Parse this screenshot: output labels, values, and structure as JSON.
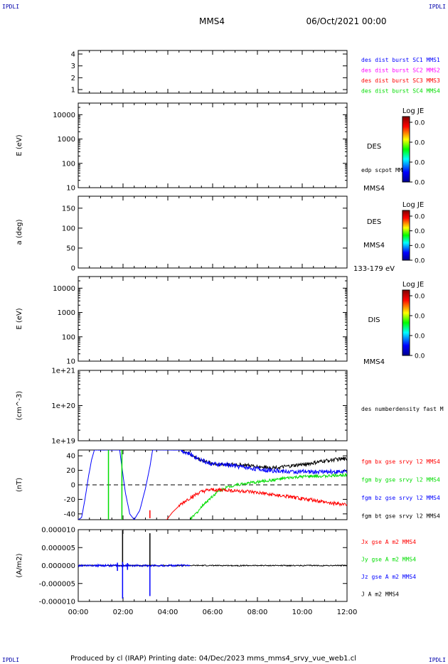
{
  "corner_labels": {
    "tl": "IPDLI",
    "tr": "IPDLI",
    "bl": "IPDLI",
    "br": "IPDLI"
  },
  "header": {
    "spacecraft": "MMS4",
    "datetime": "06/Oct/2021 00:00"
  },
  "footer": {
    "text": "Produced by cl (IRAP)   Printing date: 04/Dec/2023   mms_mms4_srvy_vue_web1.cl"
  },
  "colors": {
    "black": "#000000",
    "blue": "#0000ff",
    "magenta": "#ff00ff",
    "red": "#ff0000",
    "green": "#00dd00"
  },
  "x_axis": {
    "ticks": [
      "00:00",
      "02:00",
      "04:00",
      "06:00",
      "08:00",
      "10:00",
      "12:00"
    ],
    "range_hours": [
      0,
      12
    ]
  },
  "chart_data": [
    {
      "type": "line",
      "panel": "burst",
      "ylabel": "",
      "yticks": [
        "1",
        "2",
        "3",
        "4"
      ],
      "ylim": [
        0.7,
        4.3
      ],
      "legend": [
        {
          "text": "des dist burst SC1 MMS1",
          "color": "#0000ff"
        },
        {
          "text": "des dist burst SC2 MMS2",
          "color": "#ff00ff"
        },
        {
          "text": "des dist burst SC3 MMS3",
          "color": "#ff0000"
        },
        {
          "text": "des dist burst SC4 MMS4",
          "color": "#00dd00"
        }
      ],
      "series": []
    },
    {
      "type": "heatmap",
      "panel": "des-energy",
      "ylabel": "E (eV)",
      "yscale": "log",
      "yticks": [
        "10",
        "100",
        "1000",
        "10000"
      ],
      "ylim": [
        10,
        30000
      ],
      "side_labels": [
        "DES",
        "edp scpot MMS4",
        "MMS4"
      ],
      "colorbar": {
        "title": "Log JE",
        "ticks": [
          "0.0",
          "0.0",
          "0.0",
          "0.0"
        ]
      }
    },
    {
      "type": "heatmap",
      "panel": "des-pitch",
      "ylabel": "a (deg)",
      "yticks": [
        "0",
        "50",
        "100",
        "150"
      ],
      "ylim": [
        0,
        180
      ],
      "side_labels": [
        "DES",
        "MMS4",
        "133-179 eV"
      ],
      "colorbar": {
        "title": "Log JE",
        "ticks": [
          "0.0",
          "0.0",
          "0.0",
          "0.0"
        ]
      }
    },
    {
      "type": "heatmap",
      "panel": "dis-energy",
      "ylabel": "E (eV)",
      "yscale": "log",
      "yticks": [
        "10",
        "100",
        "1000",
        "10000"
      ],
      "ylim": [
        10,
        30000
      ],
      "side_labels": [
        "DIS",
        "MMS4"
      ],
      "colorbar": {
        "title": "Log JE",
        "ticks": [
          "0.0",
          "0.0",
          "0.0",
          "0.0"
        ]
      }
    },
    {
      "type": "line",
      "panel": "density",
      "ylabel": "(cm^-3)",
      "yscale": "log",
      "yticks": [
        "1e+19",
        "1e+20",
        "1e+21"
      ],
      "ylim": [
        1e+19,
        1e+21
      ],
      "legend": [
        {
          "text": "des numberdensity fast M",
          "color": "#000000"
        }
      ],
      "series": []
    },
    {
      "type": "line",
      "panel": "fgm",
      "ylabel": "(nT)",
      "yticks": [
        "-40",
        "-20",
        "0",
        "20",
        "40"
      ],
      "ylim": [
        -48,
        48
      ],
      "zero_line": true,
      "legend": [
        {
          "text": "fgm bx gse srvy l2 MMS4",
          "color": "#ff0000"
        },
        {
          "text": "fgm by gse srvy l2 MMS4",
          "color": "#00dd00"
        },
        {
          "text": "fgm bz gse srvy l2 MMS4",
          "color": "#0000ff"
        },
        {
          "text": "fgm bt gse srvy l2 MMS4",
          "color": "#000000"
        }
      ],
      "series": [
        {
          "name": "fgm bt gse srvy l2 MMS4",
          "color": "#000000",
          "noise": 2.5,
          "x": [
            4.6,
            4.9,
            5.2,
            5.6,
            6.0,
            6.5,
            7.0,
            7.5,
            8.0,
            8.5,
            9.0,
            9.5,
            10.0,
            10.5,
            11.0,
            11.5,
            12.0
          ],
          "y": [
            48,
            44,
            38,
            33,
            29,
            28,
            28,
            27,
            25,
            24,
            24,
            26,
            28,
            30,
            33,
            35,
            36
          ]
        },
        {
          "name": "fgm bz gse srvy l2 MMS4",
          "color": "#0000ff",
          "noise": 3.0,
          "x": [
            0.0,
            0.15,
            0.3,
            0.45,
            0.6,
            0.72,
            1.85,
            1.95,
            2.1,
            2.3,
            2.5,
            2.75,
            3.0,
            3.2,
            3.32,
            4.6,
            5.0,
            5.4,
            5.8,
            6.2,
            6.6,
            7.0,
            7.5,
            8.0,
            8.5,
            9.0,
            9.5,
            10.0,
            10.5,
            11.0,
            11.5,
            12.0
          ],
          "y": [
            -48,
            -45,
            -20,
            10,
            35,
            48,
            48,
            25,
            -10,
            -40,
            -48,
            -35,
            -5,
            25,
            48,
            48,
            42,
            36,
            30,
            28,
            28,
            26,
            24,
            22,
            20,
            19,
            18,
            18,
            18,
            18,
            18,
            18
          ]
        },
        {
          "name": "fgm by gse srvy l2 MMS4",
          "color": "#00dd00",
          "noise": 2.0,
          "x": [
            5.0,
            5.3,
            5.6,
            5.9,
            6.2,
            6.6,
            7.0,
            7.5,
            8.0,
            8.5,
            9.0,
            9.5,
            10.0,
            10.5,
            11.0,
            11.5,
            12.0
          ],
          "y": [
            -48,
            -38,
            -27,
            -18,
            -10,
            -4,
            0,
            2,
            4,
            6,
            8,
            10,
            11,
            12,
            12,
            13,
            14
          ]
        },
        {
          "name": "fgm bx gse srvy l2 MMS4",
          "color": "#ff0000",
          "noise": 2.5,
          "x": [
            3.95,
            4.2,
            4.5,
            4.8,
            5.1,
            5.4,
            5.7,
            6.0,
            6.5,
            7.0,
            7.5,
            8.0,
            8.5,
            9.0,
            9.5,
            10.0,
            10.5,
            11.0,
            11.5,
            12.0
          ],
          "y": [
            -48,
            -38,
            -29,
            -22,
            -16,
            -11,
            -8,
            -7,
            -7,
            -8,
            -9,
            -11,
            -13,
            -15,
            -17,
            -19,
            -21,
            -24,
            -26,
            -27
          ]
        }
      ],
      "spikes": [
        {
          "color": "#00dd00",
          "x": [
            1.35,
            1.35
          ],
          "y": [
            -48,
            48
          ]
        },
        {
          "color": "#00dd00",
          "x": [
            1.95,
            1.95
          ],
          "y": [
            -48,
            48
          ]
        },
        {
          "color": "#ff0000",
          "x": [
            3.2,
            3.2
          ],
          "y": [
            -35,
            -46
          ]
        }
      ]
    },
    {
      "type": "line",
      "panel": "current",
      "ylabel": "(A/m2)",
      "yticks": [
        "-0.000010",
        "-0.000005",
        "0.000000",
        "0.000005",
        "0.000010"
      ],
      "ylim": [
        -1e-05,
        1e-05
      ],
      "legend": [
        {
          "text": "Jx gse A m2 MMS4",
          "color": "#ff0000"
        },
        {
          "text": "Jy gse A m2 MMS4",
          "color": "#00dd00"
        },
        {
          "text": "Jz gse A m2 MMS4",
          "color": "#0000ff"
        },
        {
          "text": "J A m2 MMS4",
          "color": "#000000"
        }
      ],
      "series": [
        {
          "name": "J A m2 MMS4",
          "color": "#000000",
          "baseline": 0.0,
          "noise": 1.5e-07,
          "x": [
            0,
            12
          ],
          "y": [
            0,
            0
          ]
        },
        {
          "name": "Jz gse A m2 MMS4",
          "color": "#0000ff",
          "baseline": 0.0,
          "noise": 3e-07,
          "x": [
            0,
            5
          ],
          "y": [
            0,
            0
          ]
        }
      ],
      "spikes": [
        {
          "color": "#000000",
          "x": [
            1.98,
            1.98
          ],
          "y": [
            9.8e-06,
            -5e-07
          ]
        },
        {
          "color": "#0000ff",
          "x": [
            1.98,
            1.98
          ],
          "y": [
            1e-06,
            -9.2e-06
          ]
        },
        {
          "color": "#000000",
          "x": [
            3.2,
            3.2
          ],
          "y": [
            9e-06,
            0.0
          ]
        },
        {
          "color": "#0000ff",
          "x": [
            3.2,
            3.2
          ],
          "y": [
            0.0,
            -8.5e-06
          ]
        },
        {
          "color": "#0000ff",
          "x": [
            1.75,
            1.75
          ],
          "y": [
            8e-07,
            -1.5e-06
          ]
        },
        {
          "color": "#0000ff",
          "x": [
            2.2,
            2.2
          ],
          "y": [
            7e-07,
            -1.2e-06
          ]
        }
      ]
    }
  ]
}
